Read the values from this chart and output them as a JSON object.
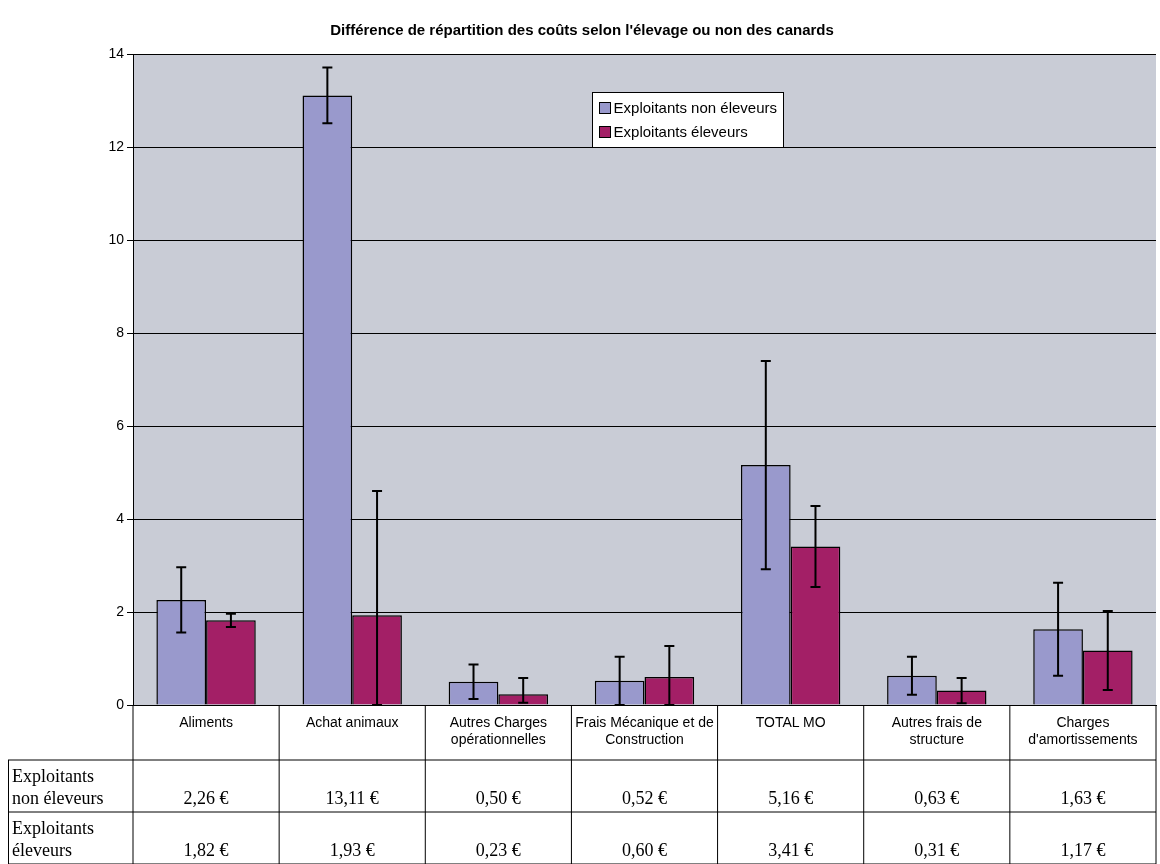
{
  "chart_data": {
    "type": "bar",
    "title": "Différence de répartition des coûts selon l'élevage ou non des canards",
    "categories": [
      "Aliments",
      "Achat animaux",
      "Autres Charges opérationnelles",
      "Frais Mécanique et de Construction",
      "TOTAL MO",
      "Autres frais de structure",
      "Charges d'amortissements"
    ],
    "series": [
      {
        "name": "Exploitants non éleveurs",
        "color": "#9999cc",
        "values": [
          2.26,
          13.11,
          0.5,
          0.52,
          5.16,
          0.63,
          1.63
        ],
        "errors": [
          0.7,
          0.6,
          0.37,
          0.52,
          2.24,
          0.41,
          1.0
        ],
        "value_labels": [
          "2,26 €",
          "13,11 €",
          "0,50 €",
          "0,52 €",
          "5,16 €",
          "0,63 €",
          "1,63 €"
        ]
      },
      {
        "name": "Exploitants éleveurs",
        "color": "#a31f66",
        "values": [
          1.82,
          1.93,
          0.23,
          0.6,
          3.41,
          0.31,
          1.17
        ],
        "errors": [
          0.14,
          [
            0,
            4.6
          ],
          [
            0.05,
            0.58
          ],
          [
            0,
            1.27
          ],
          0.87,
          0.27,
          0.85
        ],
        "value_labels": [
          "1,82 €",
          "1,93 €",
          "0,23 €",
          "0,60 €",
          "3,41 €",
          "0,31 €",
          "1,17 €"
        ]
      }
    ],
    "ylim": [
      0,
      14
    ],
    "yticks": [
      0,
      2,
      4,
      6,
      8,
      10,
      12,
      14
    ],
    "grid": "y",
    "legend": "top right"
  }
}
